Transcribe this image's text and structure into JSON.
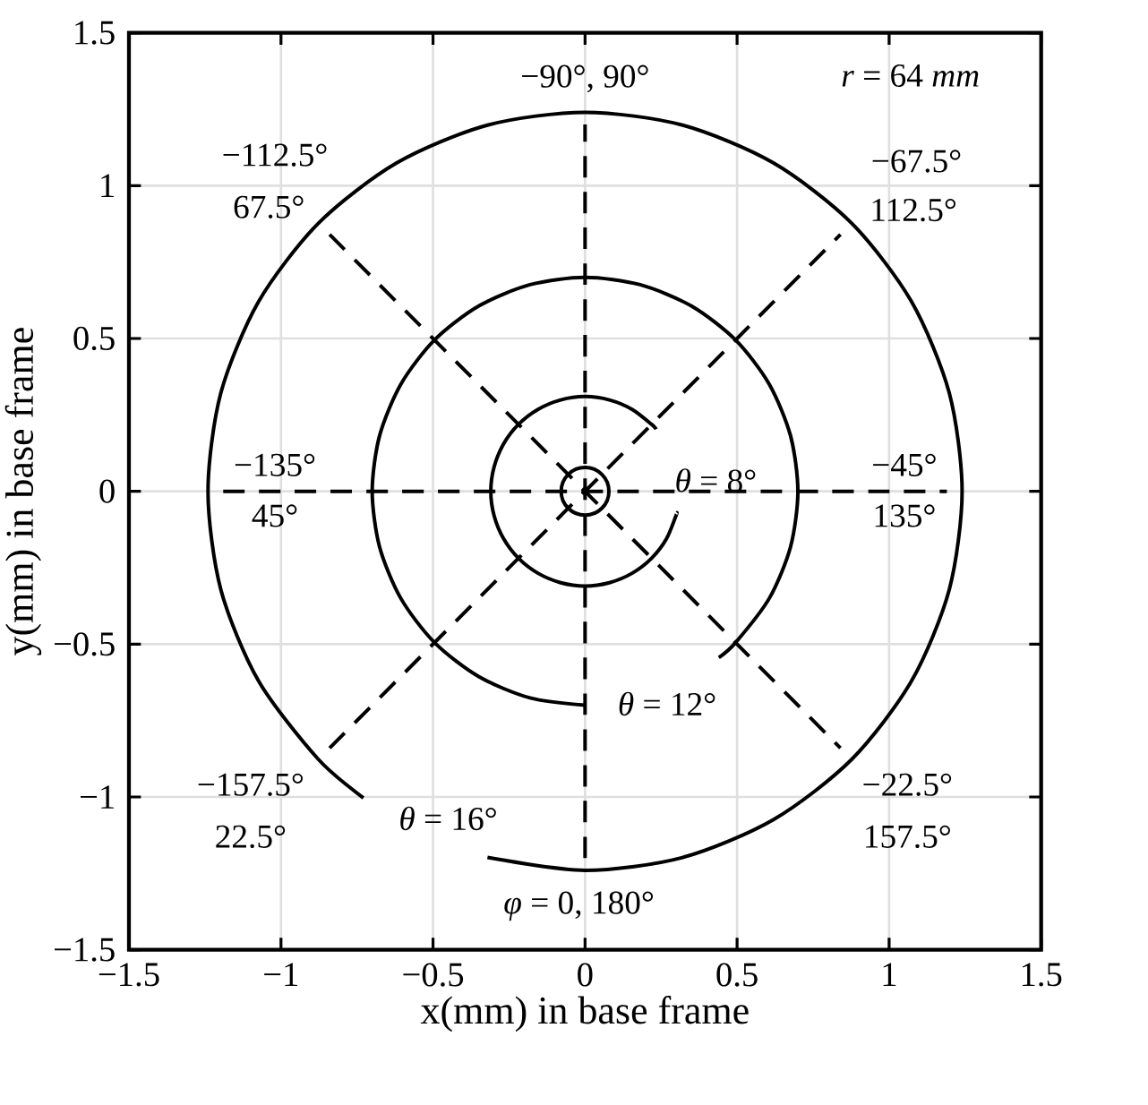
{
  "chart_data": {
    "type": "line",
    "xlabel": "x(mm) in base frame",
    "ylabel": "y(mm) in base frame",
    "xlim": [
      -1.5,
      1.5
    ],
    "ylim": [
      -1.5,
      1.5
    ],
    "xticks": [
      {
        "value": -1.5,
        "label": "−1.5"
      },
      {
        "value": -1,
        "label": "−1"
      },
      {
        "value": -0.5,
        "label": "−0.5"
      },
      0,
      0.5,
      1,
      1.5
    ],
    "yticks": [
      {
        "value": -1.5,
        "label": "−1.5"
      },
      {
        "value": -1,
        "label": "−1"
      },
      {
        "value": -0.5,
        "label": "−0.5"
      },
      0,
      0.5,
      1,
      1.5
    ],
    "grid": true,
    "marker": "none",
    "series": [
      {
        "line_style": "dashed",
        "color": "#000000",
        "x": [
          -1.19,
          1.19
        ],
        "values": [
          0,
          0
        ]
      },
      {
        "line_style": "dashed",
        "color": "#000000",
        "x": [
          0,
          0
        ],
        "values": [
          -1.2,
          1.2
        ]
      },
      {
        "line_style": "dashed",
        "color": "#000000",
        "x": [
          -0.84,
          0.84
        ],
        "values": [
          0.84,
          -0.84
        ]
      },
      {
        "line_style": "dashed",
        "color": "#000000",
        "x": [
          -0.84,
          0.84
        ],
        "values": [
          -0.84,
          0.84
        ]
      },
      {
        "type": "scatter",
        "marker": "circle",
        "color": "#000000",
        "x": [
          0
        ],
        "values": [
          0
        ]
      },
      {
        "line_style": "solid",
        "color": "#000000",
        "x": [
          0.234,
          0.219,
          0.155,
          0.08,
          0,
          -0.08,
          -0.155,
          -0.219,
          -0.268,
          -0.299,
          -0.31,
          -0.299,
          -0.268,
          -0.219,
          -0.155,
          -0.08,
          0,
          0.08,
          0.155,
          0.219,
          0.268,
          0.299,
          0.302
        ],
        "values": [
          0.203,
          0.219,
          0.268,
          0.299,
          0.31,
          0.299,
          0.268,
          0.219,
          0.155,
          0.08,
          0,
          -0.08,
          -0.155,
          -0.219,
          -0.268,
          -0.299,
          -0.31,
          -0.299,
          -0.268,
          -0.219,
          -0.155,
          -0.08,
          -0.07
        ]
      },
      {
        "line_style": "solid",
        "color": "#000000",
        "x": [
          0.44,
          0.495,
          0.606,
          0.676,
          0.7,
          0.676,
          0.606,
          0.495,
          0.35,
          0.181,
          0,
          -0.181,
          -0.35,
          -0.495,
          -0.606,
          -0.676,
          -0.7,
          -0.676,
          -0.606,
          -0.495,
          -0.35,
          -0.181,
          0
        ],
        "values": [
          -0.544,
          -0.495,
          -0.35,
          -0.181,
          0,
          0.181,
          0.35,
          0.495,
          0.606,
          0.676,
          0.7,
          0.676,
          0.606,
          0.495,
          0.35,
          0.181,
          0,
          -0.181,
          -0.35,
          -0.495,
          -0.606,
          -0.676,
          -0.7
        ]
      },
      {
        "line_style": "solid",
        "color": "#000000",
        "x": [
          -0.321,
          0,
          0.321,
          0.62,
          0.877,
          1.074,
          1.198,
          1.24,
          1.198,
          1.074,
          0.877,
          0.62,
          0.321,
          0,
          -0.321,
          -0.62,
          -0.877,
          -1.074,
          -1.198,
          -1.24,
          -1.198,
          -1.074,
          -0.877,
          -0.729
        ],
        "values": [
          -1.198,
          -1.24,
          -1.198,
          -1.074,
          -0.877,
          -0.62,
          -0.321,
          0,
          0.321,
          0.62,
          0.877,
          1.074,
          1.198,
          1.24,
          1.198,
          1.074,
          0.877,
          0.62,
          0.321,
          0,
          -0.321,
          -0.62,
          -0.877,
          -1.003
        ]
      }
    ],
    "annotations": [
      "*r* = 64 *mm*",
      "−90°, 90°",
      "−112.5°",
      "67.5°",
      "−67.5°",
      "112.5°",
      "−135°",
      "45°",
      "−45°",
      "135°",
      "*θ* = 8°",
      "*θ* = 12°",
      "*θ* = 16°",
      "−157.5°",
      "22.5°",
      "−22.5°",
      "157.5°",
      "*φ* = 0, 180°"
    ]
  }
}
